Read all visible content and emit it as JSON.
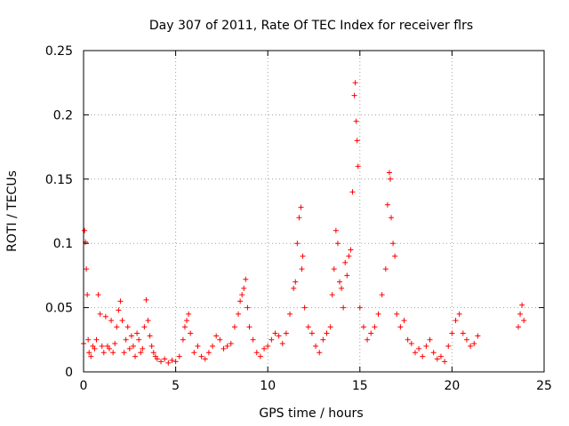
{
  "chart_data": {
    "type": "scatter",
    "title": "Day 307 of 2011, Rate Of TEC Index for receiver flrs",
    "xlabel": "GPS time / hours",
    "ylabel": "ROTI / TECUs",
    "xlim": [
      0,
      25
    ],
    "ylim": [
      0,
      0.25
    ],
    "xticks": [
      0,
      5,
      10,
      15,
      20,
      25
    ],
    "yticks": [
      0,
      0.05,
      0.1,
      0.15,
      0.2,
      0.25
    ],
    "xtick_labels": [
      "0",
      "5",
      "10",
      "15",
      "20",
      "25"
    ],
    "ytick_labels": [
      "0",
      "0.05",
      "0.1",
      "0.15",
      "0.2",
      "0.25"
    ],
    "grid": true,
    "marker": "plus",
    "color": "#ff0000",
    "series": [
      {
        "x": [
          0.0,
          0.05,
          0.1,
          0.15,
          0.2,
          0.25,
          0.3,
          0.4,
          0.5,
          0.6,
          0.7,
          0.8,
          0.9,
          1.0,
          1.1,
          1.2,
          1.3,
          1.4,
          1.5,
          1.6,
          1.7,
          1.8,
          1.9,
          2.0,
          2.1,
          2.2,
          2.3,
          2.4,
          2.5,
          2.6,
          2.7,
          2.8,
          2.9,
          3.0,
          3.1,
          3.2,
          3.3,
          3.4,
          3.5,
          3.6,
          3.7,
          3.8,
          3.9,
          4.0,
          4.2,
          4.4,
          4.6,
          4.8,
          5.0,
          5.2,
          5.4,
          5.5,
          5.6,
          5.7,
          5.8,
          6.0,
          6.2,
          6.4,
          6.6,
          6.8,
          7.0,
          7.2,
          7.4,
          7.6,
          7.8,
          8.0,
          8.2,
          8.4,
          8.5,
          8.6,
          8.7,
          8.8,
          8.9,
          9.0,
          9.2,
          9.4,
          9.6,
          9.8,
          10.0,
          10.2,
          10.4,
          10.6,
          10.8,
          11.0,
          11.2,
          11.4,
          11.5,
          11.6,
          11.7,
          11.8,
          11.85,
          11.9,
          12.0,
          12.2,
          12.4,
          12.6,
          12.8,
          13.0,
          13.2,
          13.4,
          13.5,
          13.6,
          13.7,
          13.8,
          13.9,
          14.0,
          14.1,
          14.2,
          14.3,
          14.4,
          14.5,
          14.6,
          14.7,
          14.75,
          14.8,
          14.85,
          14.9,
          15.0,
          15.2,
          15.4,
          15.6,
          15.8,
          16.0,
          16.2,
          16.4,
          16.5,
          16.6,
          16.65,
          16.7,
          16.8,
          16.9,
          17.0,
          17.2,
          17.4,
          17.6,
          17.8,
          18.0,
          18.2,
          18.4,
          18.6,
          18.8,
          19.0,
          19.2,
          19.4,
          19.6,
          19.8,
          20.0,
          20.2,
          20.4,
          20.6,
          20.8,
          21.0,
          21.2,
          21.4,
          23.6,
          23.7,
          23.8,
          23.9
        ],
        "y": [
          0.022,
          0.11,
          0.101,
          0.08,
          0.06,
          0.025,
          0.015,
          0.012,
          0.02,
          0.018,
          0.025,
          0.06,
          0.045,
          0.02,
          0.015,
          0.043,
          0.02,
          0.018,
          0.04,
          0.015,
          0.022,
          0.035,
          0.048,
          0.055,
          0.04,
          0.015,
          0.025,
          0.035,
          0.018,
          0.028,
          0.02,
          0.012,
          0.03,
          0.025,
          0.015,
          0.018,
          0.035,
          0.056,
          0.04,
          0.028,
          0.02,
          0.015,
          0.012,
          0.01,
          0.008,
          0.01,
          0.007,
          0.009,
          0.008,
          0.012,
          0.025,
          0.035,
          0.04,
          0.045,
          0.03,
          0.015,
          0.02,
          0.012,
          0.01,
          0.015,
          0.02,
          0.028,
          0.025,
          0.018,
          0.02,
          0.022,
          0.035,
          0.045,
          0.055,
          0.06,
          0.065,
          0.072,
          0.05,
          0.035,
          0.025,
          0.015,
          0.012,
          0.018,
          0.02,
          0.025,
          0.03,
          0.028,
          0.022,
          0.03,
          0.045,
          0.065,
          0.07,
          0.1,
          0.12,
          0.128,
          0.08,
          0.09,
          0.05,
          0.035,
          0.03,
          0.02,
          0.015,
          0.025,
          0.03,
          0.035,
          0.06,
          0.08,
          0.11,
          0.1,
          0.07,
          0.065,
          0.05,
          0.085,
          0.075,
          0.09,
          0.095,
          0.14,
          0.215,
          0.225,
          0.195,
          0.18,
          0.16,
          0.05,
          0.035,
          0.025,
          0.03,
          0.035,
          0.045,
          0.06,
          0.08,
          0.13,
          0.155,
          0.15,
          0.12,
          0.1,
          0.09,
          0.045,
          0.035,
          0.04,
          0.025,
          0.022,
          0.015,
          0.018,
          0.012,
          0.02,
          0.025,
          0.015,
          0.01,
          0.012,
          0.008,
          0.02,
          0.03,
          0.04,
          0.045,
          0.03,
          0.025,
          0.02,
          0.022,
          0.028,
          0.035,
          0.045,
          0.052,
          0.04
        ]
      }
    ]
  }
}
